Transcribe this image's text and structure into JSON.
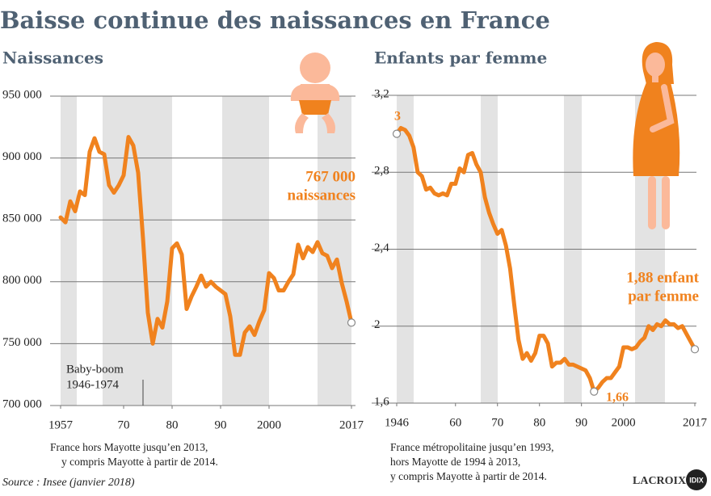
{
  "title": "Baisse continue des naissances en France",
  "source": "Source : Insee (janvier 2018)",
  "logo": "LACROIX",
  "badge": "IDIX",
  "chart_data": [
    {
      "type": "line",
      "title": "Naissances",
      "color": "#f0821e",
      "grid": true,
      "x": [
        1957,
        1958,
        1959,
        1960,
        1961,
        1962,
        1963,
        1964,
        1965,
        1966,
        1967,
        1968,
        1969,
        1970,
        1971,
        1972,
        1973,
        1974,
        1975,
        1976,
        1977,
        1978,
        1979,
        1980,
        1981,
        1982,
        1983,
        1984,
        1985,
        1986,
        1987,
        1988,
        1989,
        1990,
        1991,
        1992,
        1993,
        1994,
        1995,
        1996,
        1997,
        1998,
        1999,
        2000,
        2001,
        2002,
        2003,
        2004,
        2005,
        2006,
        2007,
        2008,
        2009,
        2010,
        2011,
        2012,
        2013,
        2014,
        2015,
        2016,
        2017
      ],
      "values": [
        852000,
        848000,
        865000,
        857000,
        873000,
        870000,
        905000,
        916000,
        905000,
        903000,
        878000,
        872000,
        878000,
        886000,
        917000,
        910000,
        888000,
        835000,
        775000,
        750000,
        770000,
        763000,
        784000,
        827000,
        831000,
        822000,
        778000,
        788000,
        796000,
        805000,
        796000,
        800000,
        796000,
        793000,
        790000,
        772000,
        741000,
        741000,
        759000,
        764000,
        757000,
        768000,
        777000,
        807000,
        803000,
        793000,
        793000,
        800000,
        806000,
        830000,
        819000,
        828000,
        824000,
        832000,
        823000,
        821000,
        811000,
        818000,
        799000,
        784000,
        767000
      ],
      "xlim": [
        1957,
        2017
      ],
      "xticks": [
        1957,
        {
          "value": 1970,
          "label": "70"
        },
        {
          "value": 1980,
          "label": "80"
        },
        {
          "value": 1990,
          "label": "90"
        },
        2000,
        2017
      ],
      "ylim": [
        700000,
        950000
      ],
      "yticks": [
        {
          "value": 700000,
          "label": "700 000"
        },
        {
          "value": 750000,
          "label": "750 000"
        },
        {
          "value": 800000,
          "label": "800 000"
        },
        {
          "value": 850000,
          "label": "850 000"
        },
        {
          "value": 900000,
          "label": "900 000"
        },
        {
          "value": 950000,
          "label": "950 000"
        }
      ],
      "annotations": [
        {
          "text": [
            "767 000",
            "naissances"
          ],
          "x": 2017,
          "marker": true
        },
        {
          "text": [
            "Baby-boom",
            "1946-1974"
          ],
          "x": 1974,
          "marker": false
        }
      ],
      "note": [
        "France hors Mayotte jusqu’en 2013,",
        "y compris Mayotte à partir de 2014."
      ]
    },
    {
      "type": "line",
      "title": "Enfants par femme",
      "color": "#f0821e",
      "grid": true,
      "x": [
        1946,
        1947,
        1948,
        1949,
        1950,
        1951,
        1952,
        1953,
        1954,
        1955,
        1956,
        1957,
        1958,
        1959,
        1960,
        1961,
        1962,
        1963,
        1964,
        1965,
        1966,
        1967,
        1968,
        1969,
        1970,
        1971,
        1972,
        1973,
        1974,
        1975,
        1976,
        1977,
        1978,
        1979,
        1980,
        1981,
        1982,
        1983,
        1984,
        1985,
        1986,
        1987,
        1988,
        1989,
        1990,
        1991,
        1992,
        1993,
        1994,
        1995,
        1996,
        1997,
        1998,
        1999,
        2000,
        2001,
        2002,
        2003,
        2004,
        2005,
        2006,
        2007,
        2008,
        2009,
        2010,
        2011,
        2012,
        2013,
        2014,
        2015,
        2016,
        2017
      ],
      "values": [
        3.0,
        3.03,
        3.02,
        2.99,
        2.93,
        2.8,
        2.78,
        2.71,
        2.72,
        2.69,
        2.68,
        2.69,
        2.68,
        2.74,
        2.74,
        2.82,
        2.8,
        2.89,
        2.9,
        2.84,
        2.8,
        2.67,
        2.59,
        2.53,
        2.48,
        2.5,
        2.42,
        2.3,
        2.11,
        1.93,
        1.83,
        1.86,
        1.82,
        1.86,
        1.95,
        1.95,
        1.91,
        1.79,
        1.81,
        1.81,
        1.83,
        1.8,
        1.8,
        1.79,
        1.78,
        1.77,
        1.73,
        1.66,
        1.68,
        1.71,
        1.73,
        1.73,
        1.76,
        1.79,
        1.89,
        1.89,
        1.88,
        1.89,
        1.92,
        1.94,
        2.0,
        1.98,
        2.01,
        2.0,
        2.03,
        2.01,
        2.01,
        1.99,
        2.0,
        1.96,
        1.92,
        1.88
      ],
      "xlim": [
        1946,
        2017
      ],
      "xticks": [
        1946,
        {
          "value": 1960,
          "label": "60"
        },
        {
          "value": 1970,
          "label": "70"
        },
        {
          "value": 1980,
          "label": "80"
        },
        {
          "value": 1990,
          "label": "90"
        },
        2000,
        2017
      ],
      "ylim": [
        1.6,
        3.2
      ],
      "yticks": [
        {
          "value": 1.6,
          "label": "1,6"
        },
        2,
        {
          "value": 2.4,
          "label": "2,4"
        },
        {
          "value": 2.8,
          "label": "2,8"
        },
        {
          "value": 3.2,
          "label": "3,2"
        }
      ],
      "annotations": [
        {
          "text": [
            "3"
          ],
          "x": 1946,
          "marker": true
        },
        {
          "text": [
            "1,66"
          ],
          "x": 1993,
          "marker": true
        },
        {
          "text": [
            "1,88 enfant",
            "par femme"
          ],
          "x": 2017,
          "marker": true
        }
      ],
      "note": [
        "France métropolitaine jusqu’en 1993,",
        "hors Mayotte de 1994 à 2013,",
        "y compris Mayotte à partir de 2014."
      ]
    }
  ]
}
